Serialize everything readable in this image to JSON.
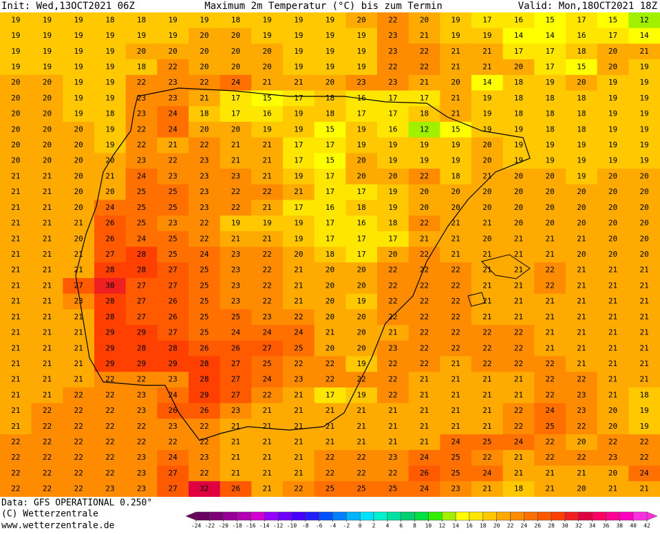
{
  "header": {
    "init": "Init: Wed,13OCT2021 06Z",
    "title": "Maximum 2m Temperatur (°C) bis zum Termin",
    "valid": "Valid: Mon,18OCT2021 18Z"
  },
  "footer": {
    "data": "Data: GFS OPERATIONAL 0.250°",
    "copyright": "(C) Wetterzentrale",
    "url": "www.wetterzentrale.de"
  },
  "map": {
    "rows": [
      [
        19,
        19,
        19,
        18,
        18,
        19,
        19,
        18,
        19,
        19,
        19,
        20,
        22,
        20,
        19,
        17,
        16,
        15,
        17,
        15,
        12
      ],
      [
        19,
        19,
        19,
        19,
        19,
        19,
        20,
        20,
        19,
        19,
        19,
        19,
        23,
        21,
        19,
        19,
        14,
        14,
        16,
        17,
        14
      ],
      [
        19,
        19,
        19,
        19,
        20,
        20,
        20,
        20,
        20,
        19,
        19,
        19,
        23,
        22,
        21,
        21,
        17,
        17,
        18,
        20,
        21
      ],
      [
        19,
        19,
        19,
        19,
        18,
        22,
        20,
        20,
        20,
        19,
        19,
        19,
        22,
        22,
        21,
        21,
        20,
        17,
        15,
        20,
        19
      ],
      [
        20,
        20,
        19,
        19,
        22,
        23,
        22,
        24,
        21,
        21,
        20,
        23,
        23,
        21,
        20,
        14,
        18,
        19,
        20,
        19,
        19
      ],
      [
        20,
        20,
        19,
        19,
        23,
        23,
        21,
        17,
        15,
        17,
        18,
        16,
        17,
        17,
        21,
        19,
        18,
        18,
        18,
        19,
        19
      ],
      [
        20,
        20,
        19,
        18,
        23,
        24,
        18,
        17,
        16,
        19,
        18,
        17,
        17,
        18,
        21,
        19,
        18,
        18,
        18,
        19,
        19
      ],
      [
        20,
        20,
        20,
        19,
        22,
        24,
        20,
        20,
        19,
        19,
        15,
        19,
        16,
        12,
        15,
        19,
        19,
        18,
        18,
        19,
        19
      ],
      [
        20,
        20,
        20,
        19,
        22,
        21,
        22,
        21,
        21,
        17,
        17,
        19,
        19,
        19,
        19,
        20,
        19,
        19,
        19,
        19,
        19
      ],
      [
        20,
        20,
        20,
        20,
        23,
        22,
        23,
        21,
        21,
        17,
        15,
        20,
        19,
        19,
        19,
        20,
        19,
        19,
        19,
        19,
        19
      ],
      [
        21,
        21,
        20,
        21,
        24,
        23,
        23,
        23,
        21,
        19,
        17,
        20,
        20,
        22,
        18,
        21,
        20,
        20,
        19,
        20,
        20
      ],
      [
        21,
        21,
        20,
        20,
        25,
        25,
        23,
        22,
        22,
        21,
        17,
        17,
        19,
        20,
        20,
        20,
        20,
        20,
        20,
        20,
        20
      ],
      [
        21,
        21,
        20,
        24,
        25,
        25,
        23,
        22,
        21,
        17,
        16,
        18,
        19,
        20,
        20,
        20,
        20,
        20,
        20,
        20,
        20
      ],
      [
        21,
        21,
        21,
        26,
        25,
        23,
        22,
        19,
        19,
        19,
        17,
        16,
        18,
        22,
        21,
        21,
        20,
        20,
        20,
        20,
        20
      ],
      [
        21,
        21,
        20,
        26,
        24,
        25,
        22,
        21,
        21,
        19,
        17,
        17,
        17,
        21,
        21,
        20,
        21,
        21,
        21,
        20,
        20
      ],
      [
        21,
        21,
        21,
        27,
        28,
        25,
        24,
        23,
        22,
        20,
        18,
        17,
        20,
        22,
        21,
        21,
        21,
        21,
        20,
        20,
        20
      ],
      [
        21,
        21,
        21,
        28,
        28,
        27,
        25,
        23,
        22,
        21,
        20,
        20,
        22,
        22,
        22,
        21,
        21,
        22,
        21,
        21,
        21
      ],
      [
        21,
        21,
        27,
        30,
        27,
        27,
        25,
        23,
        22,
        21,
        20,
        20,
        22,
        22,
        22,
        21,
        21,
        22,
        21,
        21,
        21
      ],
      [
        21,
        21,
        23,
        28,
        27,
        26,
        25,
        23,
        22,
        21,
        20,
        19,
        22,
        22,
        22,
        21,
        21,
        21,
        21,
        21,
        21
      ],
      [
        21,
        21,
        21,
        28,
        27,
        26,
        25,
        25,
        23,
        22,
        20,
        20,
        22,
        22,
        22,
        21,
        21,
        21,
        21,
        21,
        21
      ],
      [
        21,
        21,
        21,
        29,
        29,
        27,
        25,
        24,
        24,
        24,
        21,
        20,
        21,
        22,
        22,
        22,
        22,
        21,
        21,
        21,
        21
      ],
      [
        21,
        21,
        21,
        29,
        28,
        28,
        26,
        26,
        27,
        25,
        20,
        20,
        23,
        22,
        22,
        22,
        22,
        21,
        21,
        21,
        21
      ],
      [
        21,
        21,
        21,
        29,
        29,
        29,
        28,
        27,
        25,
        22,
        22,
        19,
        22,
        22,
        21,
        22,
        22,
        22,
        21,
        21,
        21
      ],
      [
        21,
        21,
        21,
        22,
        22,
        23,
        28,
        27,
        24,
        23,
        22,
        22,
        22,
        21,
        21,
        21,
        21,
        22,
        22,
        21,
        21
      ],
      [
        21,
        21,
        22,
        22,
        23,
        24,
        29,
        27,
        22,
        21,
        17,
        19,
        22,
        21,
        21,
        21,
        21,
        22,
        23,
        21,
        18
      ],
      [
        21,
        22,
        22,
        22,
        23,
        26,
        26,
        23,
        21,
        21,
        21,
        21,
        21,
        21,
        21,
        21,
        22,
        24,
        23,
        20,
        19
      ],
      [
        21,
        22,
        22,
        22,
        22,
        23,
        22,
        21,
        21,
        21,
        21,
        21,
        21,
        21,
        21,
        21,
        22,
        25,
        22,
        20,
        19
      ],
      [
        22,
        22,
        22,
        22,
        22,
        22,
        22,
        21,
        21,
        21,
        21,
        21,
        21,
        21,
        24,
        25,
        24,
        22,
        20,
        22,
        22
      ],
      [
        22,
        22,
        22,
        22,
        23,
        24,
        23,
        21,
        21,
        21,
        22,
        22,
        23,
        24,
        25,
        22,
        21,
        22,
        22,
        23,
        22
      ],
      [
        22,
        22,
        22,
        22,
        23,
        27,
        22,
        21,
        21,
        21,
        22,
        22,
        22,
        26,
        25,
        24,
        21,
        21,
        21,
        20,
        24
      ],
      [
        22,
        22,
        22,
        23,
        23,
        27,
        32,
        26,
        21,
        22,
        25,
        25,
        25,
        24,
        23,
        21,
        18,
        21,
        20,
        21,
        21
      ]
    ]
  },
  "scale": {
    "ticks": [
      -24,
      -22,
      -20,
      -18,
      -16,
      -14,
      -12,
      -10,
      -8,
      -6,
      -4,
      -2,
      0,
      2,
      4,
      6,
      8,
      10,
      12,
      14,
      16,
      18,
      20,
      22,
      24,
      26,
      28,
      30,
      32,
      34,
      36,
      38,
      40,
      42
    ],
    "colors": [
      "#6a0060",
      "#7e0078",
      "#960096",
      "#b400b4",
      "#d200d2",
      "#9600ff",
      "#6e00ff",
      "#4600ff",
      "#2020ff",
      "#0050ff",
      "#0080ff",
      "#00b4ff",
      "#00e0ff",
      "#00f0d0",
      "#00e0a0",
      "#00d070",
      "#00e040",
      "#30f000",
      "#a0f000",
      "#ffff00",
      "#ffe600",
      "#ffc800",
      "#ffaa00",
      "#ff8c00",
      "#ff7000",
      "#ff5a00",
      "#ff4000",
      "#f02020",
      "#e00040",
      "#ff0060",
      "#ff0090",
      "#ff00c0",
      "#ff30e0"
    ]
  }
}
